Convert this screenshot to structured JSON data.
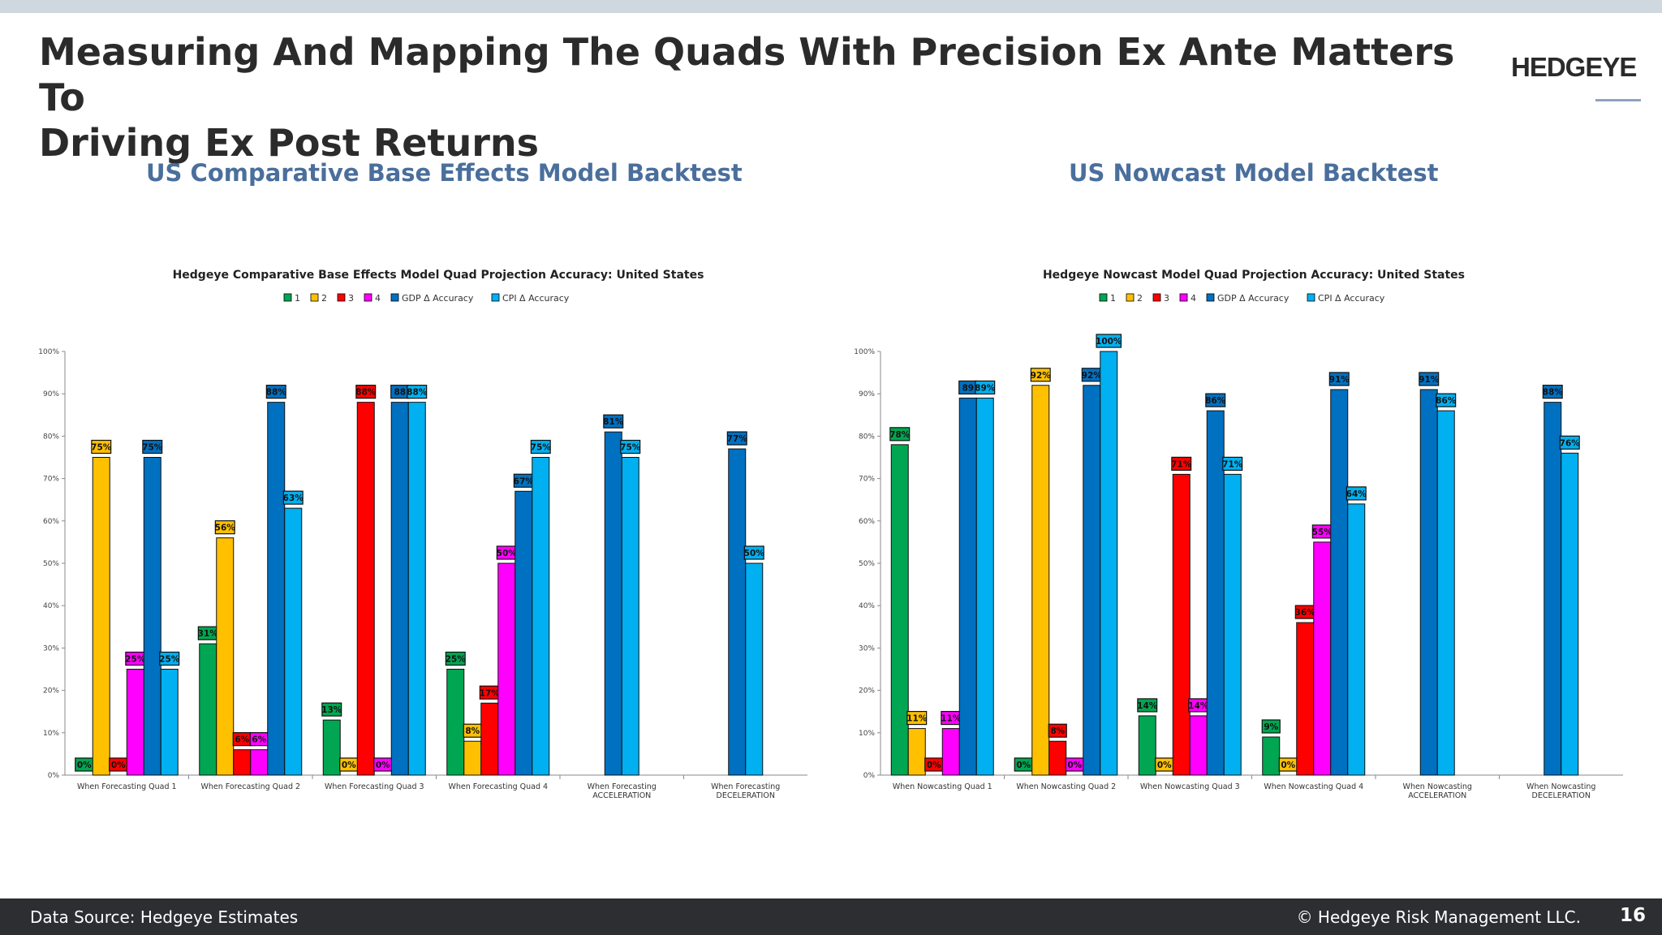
{
  "slide": {
    "title_line1": "Measuring And Mapping The Quads With Precision Ex Ante Matters To",
    "title_line2": "Driving Ex Post Returns",
    "logo": "HEDGEYE",
    "left_heading": "US Comparative Base Effects Model Backtest",
    "right_heading": "US Nowcast Model Backtest"
  },
  "footer": {
    "source": "Data Source: Hedgeye Estimates",
    "copyright": "© Hedgeye Risk Management LLC.",
    "page": "16"
  },
  "colors": {
    "1": "#00a651",
    "2": "#ffc000",
    "3": "#ff0000",
    "4": "#ff00ff",
    "GDP": "#0070c0",
    "CPI": "#00b0f0",
    "heading": "#4a6f9c",
    "title": "#2b2b2b",
    "footer_bg": "#2c2e32"
  },
  "chart_data": [
    {
      "type": "bar",
      "title": "Hedgeye Comparative Base Effects Model Quad Projection Accuracy: United States",
      "legend_position": "top",
      "ylim": [
        0,
        100
      ],
      "yticks": [
        "0%",
        "10%",
        "20%",
        "30%",
        "40%",
        "50%",
        "60%",
        "70%",
        "80%",
        "90%",
        "100%"
      ],
      "categories": [
        [
          "When Forecasting Quad 1"
        ],
        [
          "When Forecasting Quad 2"
        ],
        [
          "When Forecasting Quad 3"
        ],
        [
          "When Forecasting Quad 4"
        ],
        [
          "When Forecasting",
          "ACCELERATION"
        ],
        [
          "When Forecasting",
          "DECELERATION"
        ]
      ],
      "series": [
        {
          "name": "1",
          "key": "1",
          "values": [
            0,
            31,
            13,
            25,
            null,
            null
          ],
          "labels": [
            "0%",
            "31%",
            "13%",
            "25%",
            null,
            null
          ]
        },
        {
          "name": "2",
          "key": "2",
          "values": [
            75,
            56,
            0,
            8,
            null,
            null
          ],
          "labels": [
            "75%",
            "56%",
            "0%",
            "8%",
            null,
            null
          ]
        },
        {
          "name": "3",
          "key": "3",
          "values": [
            0,
            6,
            88,
            17,
            null,
            null
          ],
          "labels": [
            "0%",
            "6%",
            "88%",
            "17%",
            null,
            null
          ]
        },
        {
          "name": "4",
          "key": "4",
          "values": [
            25,
            6,
            0,
            50,
            null,
            null
          ],
          "labels": [
            "25%",
            "6%",
            "0%",
            "50%",
            null,
            null
          ]
        },
        {
          "name": "GDP Δ Accuracy",
          "key": "GDP",
          "values": [
            75,
            88,
            88,
            67,
            81,
            77
          ],
          "labels": [
            "75%",
            "88%",
            "88",
            "67%",
            "81%",
            "77%"
          ]
        },
        {
          "name": "CPI Δ Accuracy",
          "key": "CPI",
          "values": [
            25,
            63,
            88,
            75,
            75,
            50
          ],
          "labels": [
            "25%",
            "63%",
            "88%",
            "75%",
            "75%",
            "50%"
          ]
        }
      ]
    },
    {
      "type": "bar",
      "title": "Hedgeye Nowcast Model Quad Projection Accuracy: United States",
      "legend_position": "top",
      "ylim": [
        0,
        100
      ],
      "yticks": [
        "0%",
        "10%",
        "20%",
        "30%",
        "40%",
        "50%",
        "60%",
        "70%",
        "80%",
        "90%",
        "100%"
      ],
      "categories": [
        [
          "When Nowcasting Quad 1"
        ],
        [
          "When Nowcasting Quad 2"
        ],
        [
          "When Nowcasting Quad 3"
        ],
        [
          "When Nowcasting Quad 4"
        ],
        [
          "When Nowcasting",
          "ACCELERATION"
        ],
        [
          "When Nowcasting",
          "DECELERATION"
        ]
      ],
      "series": [
        {
          "name": "1",
          "key": "1",
          "values": [
            78,
            0,
            14,
            9,
            null,
            null
          ],
          "labels": [
            "78%",
            "0%",
            "14%",
            "9%",
            null,
            null
          ]
        },
        {
          "name": "2",
          "key": "2",
          "values": [
            11,
            92,
            0,
            0,
            null,
            null
          ],
          "labels": [
            "11%",
            "92%",
            "0%",
            "0%",
            null,
            null
          ]
        },
        {
          "name": "3",
          "key": "3",
          "values": [
            0,
            8,
            71,
            36,
            null,
            null
          ],
          "labels": [
            "0%",
            "8%",
            "71%",
            "36%",
            null,
            null
          ]
        },
        {
          "name": "4",
          "key": "4",
          "values": [
            11,
            0,
            14,
            55,
            null,
            null
          ],
          "labels": [
            "11%",
            "0%",
            "14%",
            "55%",
            null,
            null
          ]
        },
        {
          "name": "GDP Δ Accuracy",
          "key": "GDP",
          "values": [
            89,
            92,
            86,
            91,
            91,
            88
          ],
          "labels": [
            "89",
            "92%",
            "86%",
            "91%",
            "91%",
            "88%"
          ]
        },
        {
          "name": "CPI Δ Accuracy",
          "key": "CPI",
          "values": [
            89,
            100,
            71,
            64,
            86,
            76
          ],
          "labels": [
            "89%",
            "100%",
            "71%",
            "64%",
            "86%",
            "76%"
          ]
        }
      ]
    }
  ]
}
